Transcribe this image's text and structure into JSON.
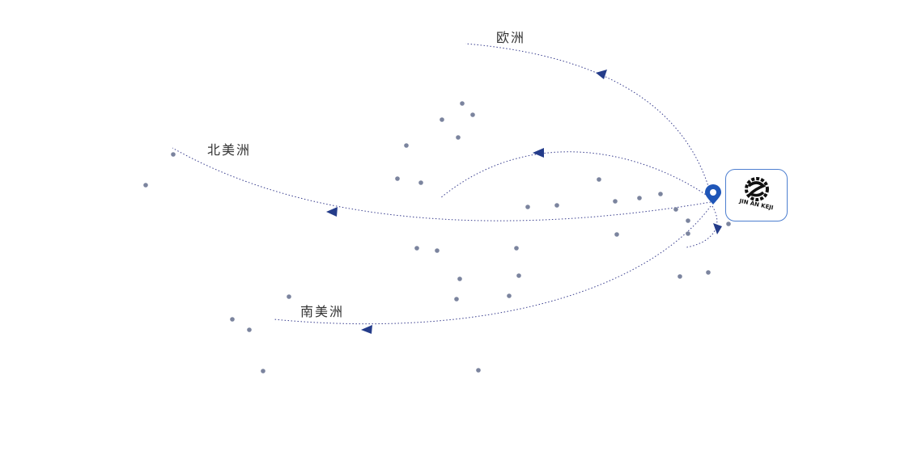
{
  "regions": [
    {
      "label": "欧洲"
    },
    {
      "label": "北美洲"
    },
    {
      "label": "南美洲"
    }
  ],
  "logo": {
    "text": "JIN AN KEJI"
  },
  "colors": {
    "route": "#3a3f8f",
    "arrow": "#243c8a",
    "dot": "#7b849e",
    "pin": "#1f56b8"
  },
  "icons": {
    "origin": "map-pin-icon"
  }
}
